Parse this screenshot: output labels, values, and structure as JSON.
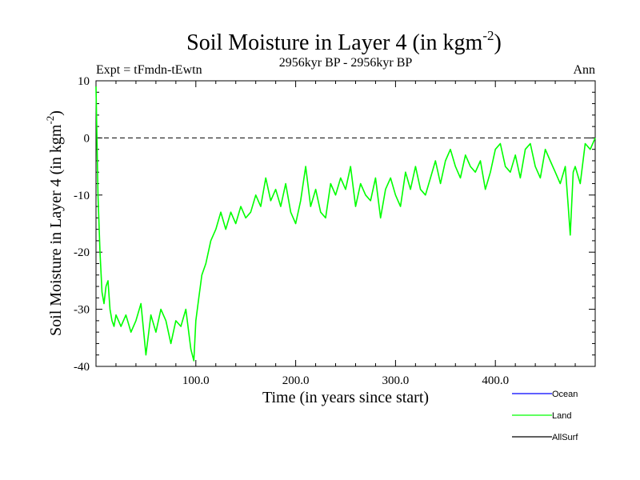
{
  "chart_data": {
    "type": "line",
    "title": "Soil Moisture in Layer 4 (in kgm",
    "title_sup": "-2",
    "title_close": ")",
    "subtitle_left": "Expt = tFmdn-tEwtn",
    "subtitle_center": "2956kyr BP - 2956kyr BP",
    "subtitle_right": "Ann",
    "xlabel": "Time (in years since start)",
    "ylabel": "Soil Moisture in Layer 4 (in kgm",
    "ylabel_sup": "-2",
    "ylabel_close": ")",
    "xlim": [
      0,
      500
    ],
    "ylim": [
      -40,
      10
    ],
    "x_ticks": [
      {
        "value": 100,
        "label": "100.0"
      },
      {
        "value": 200,
        "label": "200.0"
      },
      {
        "value": 300,
        "label": "300.0"
      },
      {
        "value": 400,
        "label": "400.0"
      }
    ],
    "y_ticks": [
      {
        "value": 10,
        "label": "10"
      },
      {
        "value": 0,
        "label": "0"
      },
      {
        "value": -10,
        "label": "-10"
      },
      {
        "value": -20,
        "label": "-20"
      },
      {
        "value": -30,
        "label": "-30"
      },
      {
        "value": -40,
        "label": "-40"
      }
    ],
    "reference_line": 0,
    "legend_position": "bottom-right",
    "legend": [
      {
        "name": "Ocean",
        "color": "#0000ff"
      },
      {
        "name": "Land",
        "color": "#00ff00"
      },
      {
        "name": "AllSurf",
        "color": "#000000"
      }
    ],
    "series": [
      {
        "name": "Land",
        "color": "#00ff00",
        "x": [
          0,
          2,
          4,
          6,
          8,
          10,
          12,
          14,
          16,
          18,
          20,
          25,
          30,
          35,
          40,
          45,
          50,
          55,
          60,
          65,
          70,
          75,
          80,
          85,
          90,
          95,
          98,
          100,
          103,
          106,
          110,
          115,
          120,
          125,
          130,
          135,
          140,
          145,
          150,
          155,
          160,
          165,
          170,
          175,
          180,
          185,
          190,
          195,
          200,
          205,
          210,
          215,
          220,
          225,
          230,
          235,
          240,
          245,
          250,
          255,
          260,
          265,
          270,
          275,
          280,
          285,
          290,
          295,
          300,
          305,
          310,
          315,
          320,
          325,
          330,
          335,
          340,
          345,
          350,
          355,
          360,
          365,
          370,
          375,
          380,
          385,
          390,
          395,
          400,
          405,
          410,
          415,
          420,
          425,
          430,
          435,
          440,
          445,
          450,
          455,
          460,
          465,
          470,
          473,
          475,
          478,
          480,
          485,
          490,
          495,
          500
        ],
        "y": [
          9,
          -10,
          -20,
          -27,
          -29,
          -26,
          -25,
          -30,
          -32,
          -33,
          -31,
          -33,
          -31,
          -34,
          -32,
          -29,
          -38,
          -31,
          -34,
          -30,
          -32,
          -36,
          -32,
          -33,
          -30,
          -37,
          -39,
          -32,
          -28,
          -24,
          -22,
          -18,
          -16,
          -13,
          -16,
          -13,
          -15,
          -12,
          -14,
          -13,
          -10,
          -12,
          -7,
          -11,
          -9,
          -12,
          -8,
          -13,
          -15,
          -11,
          -5,
          -12,
          -9,
          -13,
          -14,
          -8,
          -10,
          -7,
          -9,
          -5,
          -12,
          -8,
          -10,
          -11,
          -7,
          -14,
          -9,
          -7,
          -10,
          -12,
          -6,
          -9,
          -5,
          -9,
          -10,
          -7,
          -4,
          -8,
          -4,
          -2,
          -5,
          -7,
          -3,
          -5,
          -6,
          -4,
          -9,
          -6,
          -2,
          -1,
          -5,
          -6,
          -3,
          -7,
          -2,
          -1,
          -5,
          -7,
          -2,
          -4,
          -6,
          -8,
          -5,
          -12,
          -17,
          -6,
          -5,
          -8,
          -1,
          -2,
          0
        ]
      }
    ]
  }
}
